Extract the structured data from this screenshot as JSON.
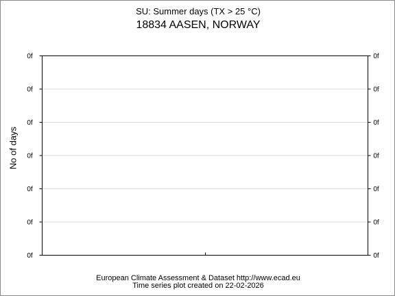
{
  "chart_data": {
    "type": "bar",
    "title": "SU: Summer days (TX > 25 °C)",
    "subtitle": "18834 AASEN, NORWAY",
    "ylabel": "No of days",
    "categories": [],
    "values": [],
    "y_tick_labels": [
      "0f",
      "0f",
      "0f",
      "0f",
      "0f",
      "0f",
      "0f"
    ],
    "ylim": [
      0,
      1
    ],
    "grid": true,
    "legend": "none"
  },
  "footer": {
    "line1": "European Climate Assessment & Dataset  http://www.ecad.eu",
    "line2": "Time series plot created on 22-02-2026"
  },
  "colors": {
    "gridline": "#d9d9d9",
    "axis": "#000000"
  }
}
